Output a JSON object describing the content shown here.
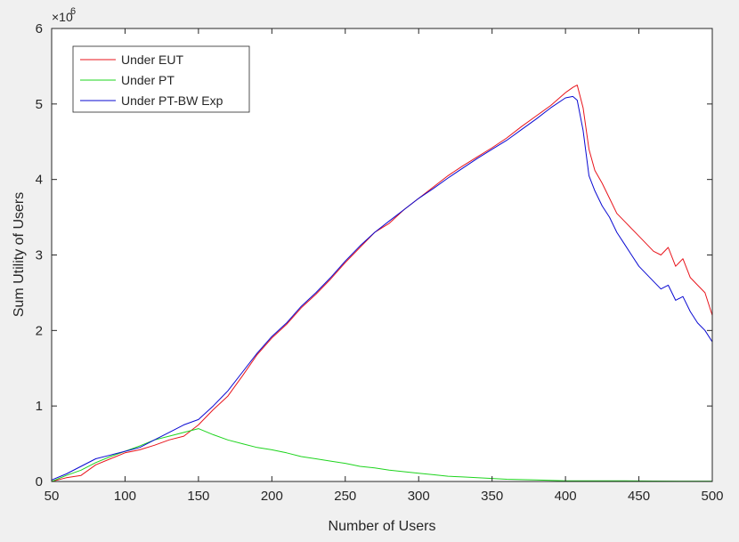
{
  "colors": {
    "background": "#f0f0f0",
    "plot_area": "#ffffff",
    "axis": "#262626",
    "series": [
      "#e8141b",
      "#1ed41e",
      "#0a0ad2"
    ]
  },
  "chart_data": {
    "type": "line",
    "title": "",
    "xlabel": "Number of Users",
    "ylabel": "Sum Utility of Users",
    "y_multiplier_label": "×10",
    "y_multiplier_exponent": "6",
    "xlim": [
      50,
      500
    ],
    "ylim": [
      0,
      6
    ],
    "y_scale_factor": 1000000,
    "xticks": [
      50,
      100,
      150,
      200,
      250,
      300,
      350,
      400,
      450,
      500
    ],
    "yticks": [
      0,
      1,
      2,
      3,
      4,
      5,
      6
    ],
    "xtick_labels": [
      "50",
      "100",
      "150",
      "200",
      "250",
      "300",
      "350",
      "400",
      "450",
      "500"
    ],
    "ytick_labels": [
      "0",
      "1",
      "2",
      "3",
      "4",
      "5",
      "6"
    ],
    "grid": false,
    "legend_position": "top-left",
    "series": [
      {
        "name": "Under EUT",
        "color": "#e8141b",
        "x": [
          50,
          60,
          70,
          80,
          90,
          100,
          110,
          120,
          130,
          140,
          150,
          160,
          170,
          180,
          190,
          200,
          210,
          220,
          230,
          240,
          250,
          260,
          270,
          280,
          290,
          300,
          310,
          320,
          330,
          340,
          350,
          360,
          370,
          380,
          390,
          400,
          405,
          408,
          412,
          416,
          420,
          425,
          430,
          435,
          440,
          445,
          450,
          455,
          460,
          465,
          470,
          475,
          480,
          485,
          490,
          495,
          500
        ],
        "y": [
          0.0,
          0.05,
          0.08,
          0.22,
          0.3,
          0.38,
          0.42,
          0.48,
          0.55,
          0.6,
          0.75,
          0.95,
          1.13,
          1.4,
          1.68,
          1.9,
          2.08,
          2.3,
          2.48,
          2.68,
          2.9,
          3.1,
          3.3,
          3.42,
          3.6,
          3.75,
          3.9,
          4.05,
          4.18,
          4.3,
          4.42,
          4.55,
          4.7,
          4.84,
          4.98,
          5.15,
          5.22,
          5.25,
          4.95,
          4.4,
          4.12,
          3.95,
          3.75,
          3.55,
          3.45,
          3.35,
          3.25,
          3.15,
          3.05,
          3.0,
          3.1,
          2.85,
          2.95,
          2.7,
          2.6,
          2.5,
          2.2
        ]
      },
      {
        "name": "Under PT",
        "color": "#1ed41e",
        "x": [
          50,
          60,
          70,
          80,
          90,
          100,
          110,
          120,
          130,
          140,
          150,
          160,
          170,
          180,
          190,
          200,
          210,
          220,
          230,
          240,
          250,
          260,
          270,
          280,
          290,
          300,
          310,
          320,
          330,
          340,
          350,
          360,
          370,
          380,
          390,
          400,
          420,
          440,
          460,
          480,
          500
        ],
        "y": [
          0.0,
          0.08,
          0.15,
          0.25,
          0.33,
          0.4,
          0.47,
          0.55,
          0.6,
          0.65,
          0.7,
          0.62,
          0.55,
          0.5,
          0.45,
          0.42,
          0.38,
          0.33,
          0.3,
          0.27,
          0.24,
          0.2,
          0.18,
          0.15,
          0.13,
          0.11,
          0.09,
          0.07,
          0.06,
          0.05,
          0.04,
          0.03,
          0.025,
          0.02,
          0.015,
          0.01,
          0.01,
          0.008,
          0.006,
          0.005,
          0.005
        ]
      },
      {
        "name": "Under PT-BW Exp",
        "color": "#0a0ad2",
        "x": [
          50,
          60,
          70,
          80,
          90,
          100,
          110,
          120,
          130,
          140,
          150,
          160,
          170,
          180,
          190,
          200,
          210,
          220,
          230,
          240,
          250,
          260,
          270,
          280,
          290,
          300,
          310,
          320,
          330,
          340,
          350,
          360,
          370,
          380,
          390,
          400,
          405,
          408,
          412,
          416,
          420,
          425,
          430,
          435,
          440,
          445,
          450,
          455,
          460,
          465,
          470,
          475,
          480,
          485,
          490,
          495,
          500
        ],
        "y": [
          0.02,
          0.1,
          0.2,
          0.3,
          0.35,
          0.4,
          0.45,
          0.55,
          0.65,
          0.75,
          0.82,
          1.0,
          1.2,
          1.45,
          1.7,
          1.92,
          2.1,
          2.32,
          2.5,
          2.7,
          2.92,
          3.12,
          3.3,
          3.45,
          3.6,
          3.75,
          3.88,
          4.02,
          4.15,
          4.28,
          4.4,
          4.52,
          4.66,
          4.8,
          4.95,
          5.08,
          5.1,
          5.05,
          4.65,
          4.05,
          3.85,
          3.65,
          3.5,
          3.3,
          3.15,
          3.0,
          2.85,
          2.75,
          2.65,
          2.55,
          2.6,
          2.4,
          2.45,
          2.25,
          2.1,
          2.0,
          1.85
        ]
      }
    ]
  }
}
